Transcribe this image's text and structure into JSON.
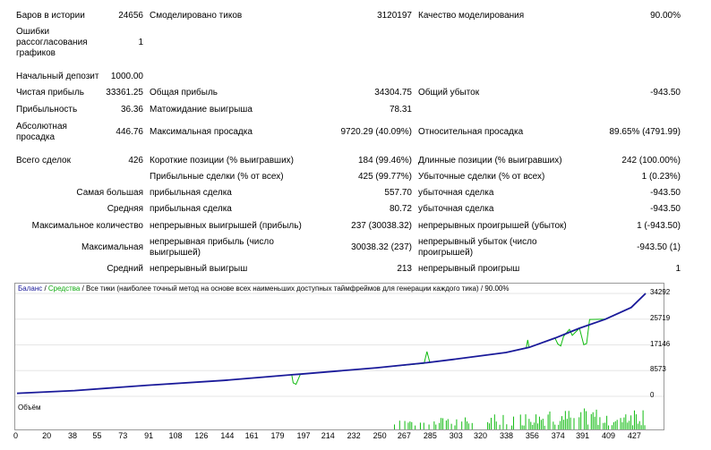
{
  "report": {
    "bars_label": "Баров в истории",
    "bars_value": "24656",
    "ticks_label": "Смоделировано тиков",
    "ticks_value": "3120197",
    "quality_label": "Качество моделирования",
    "quality_value": "90.00%",
    "mismatch_label": "Ошибки рассогласования графиков",
    "mismatch_value": "1",
    "deposit_label": "Начальный депозит",
    "deposit_value": "1000.00",
    "net_label": "Чистая прибыль",
    "net_value": "33361.25",
    "gross_profit_label": "Общая прибыль",
    "gross_profit_value": "34304.75",
    "gross_loss_label": "Общий убыток",
    "gross_loss_value": "-943.50",
    "pf_label": "Прибыльность",
    "pf_value": "36.36",
    "payoff_label": "Матожидание выигрыша",
    "payoff_value": "78.31",
    "abs_dd_label": "Абсолютная просадка",
    "abs_dd_value": "446.76",
    "max_dd_label": "Максимальная просадка",
    "max_dd_value": "9720.29 (40.09%)",
    "rel_dd_label": "Относительная просадка",
    "rel_dd_value": "89.65% (4791.99)",
    "trades_label": "Всего сделок",
    "trades_value": "426",
    "short_label": "Короткие позиции (% выигравших)",
    "short_value": "184 (99.46%)",
    "long_label": "Длинные позиции (% выигравших)",
    "long_value": "242 (100.00%)",
    "win_trades_label": "Прибыльные сделки (% от всех)",
    "win_trades_value": "425 (99.77%)",
    "loss_trades_label": "Убыточные сделки (% от всех)",
    "loss_trades_value": "1 (0.23%)",
    "largest_label": "Самая большая",
    "largest_win_label": "прибыльная сделка",
    "largest_win_value": "557.70",
    "largest_loss_label": "убыточная сделка",
    "largest_loss_value": "-943.50",
    "avg_label": "Средняя",
    "avg_win_label": "прибыльная сделка",
    "avg_win_value": "80.72",
    "avg_loss_label": "убыточная сделка",
    "avg_loss_value": "-943.50",
    "maxcount_label": "Максимальное количество",
    "maxcount_win_label": "непрерывных выигрышей (прибыль)",
    "maxcount_win_value": "237 (30038.32)",
    "maxcount_loss_label": "непрерывных проигрышей (убыток)",
    "maxcount_loss_value": "1 (-943.50)",
    "maximal_label": "Максимальная",
    "maximal_win_label": "непрерывная прибыль (число выигрышей)",
    "maximal_win_value": "30038.32 (237)",
    "maximal_loss_label": "непрерывный убыток (число проигрышей)",
    "maximal_loss_value": "-943.50 (1)",
    "average_label": "Средний",
    "average_win_label": "непрерывный выигрыш",
    "average_win_value": "213",
    "average_loss_label": "непрерывный проигрыш",
    "average_loss_value": "1"
  },
  "chart": {
    "legend_balance": "Баланс",
    "legend_sep1": " / ",
    "legend_equity": "Средства",
    "legend_sep2": " / ",
    "legend_desc": "Все тики (наиболее точный метод на основе всех наименьших доступных таймфреймов для генерации каждого тика) / 90.00%",
    "volume_label": "Объём",
    "colors": {
      "balance": "#1a1a9a",
      "equity": "#11bb11",
      "volume": "#11bb11"
    }
  },
  "chart_data": {
    "type": "line",
    "ylim": [
      0,
      34292
    ],
    "xlim": [
      0,
      437
    ],
    "y_ticks": [
      "34292",
      "25719",
      "17146",
      "8573",
      "0"
    ],
    "y_tick_values": [
      34292,
      25719,
      17146,
      8573,
      0
    ],
    "x_ticks": [
      "0",
      "20",
      "38",
      "55",
      "73",
      "91",
      "108",
      "126",
      "144",
      "161",
      "179",
      "197",
      "214",
      "232",
      "250",
      "267",
      "285",
      "303",
      "320",
      "338",
      "356",
      "374",
      "391",
      "409",
      "427"
    ],
    "x_tick_values": [
      0,
      20,
      38,
      55,
      73,
      91,
      108,
      126,
      144,
      161,
      179,
      197,
      214,
      232,
      250,
      267,
      285,
      303,
      320,
      338,
      356,
      374,
      391,
      409,
      427
    ],
    "series": [
      {
        "name": "Баланс",
        "x": [
          0,
          40,
          91,
          144,
          179,
          191,
          197,
          250,
          285,
          303,
          340,
          356,
          374,
          391,
          409,
          427,
          437
        ],
        "y": [
          1000,
          1900,
          3700,
          5300,
          6700,
          7200,
          7400,
          9500,
          11200,
          12300,
          14600,
          16300,
          19400,
          22700,
          25700,
          29600,
          34300
        ]
      },
      {
        "name": "Средства",
        "x": [
          0,
          40,
          91,
          144,
          179,
          191,
          192,
          194,
          197,
          250,
          283,
          285,
          287,
          303,
          340,
          354,
          355,
          356,
          374,
          376,
          378,
          380,
          384,
          386,
          391,
          394,
          396,
          398,
          409,
          427,
          437
        ],
        "y": [
          1000,
          1900,
          3700,
          5300,
          6700,
          7200,
          4500,
          4000,
          7400,
          9500,
          11000,
          14900,
          11300,
          12300,
          14600,
          16200,
          18800,
          16300,
          19400,
          17400,
          16800,
          20000,
          22300,
          20300,
          22700,
          17200,
          17600,
          25600,
          25700,
          29600,
          34300
        ]
      }
    ],
    "volume_note": "per-trade volume bars"
  }
}
